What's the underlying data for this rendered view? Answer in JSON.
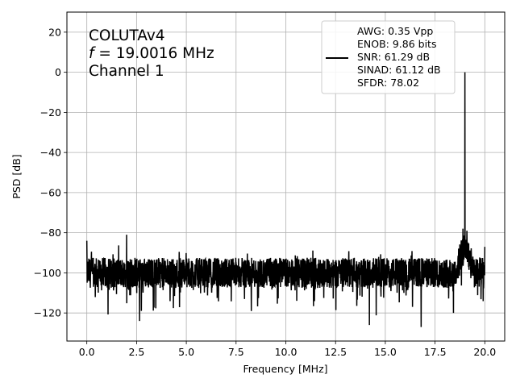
{
  "chart_data": {
    "type": "line",
    "xlabel": "Frequency [MHz]",
    "ylabel": "PSD [dB]",
    "xlim": [
      -1.0,
      21.0
    ],
    "ylim": [
      -134,
      30
    ],
    "xticks": [
      0.0,
      2.5,
      5.0,
      7.5,
      10.0,
      12.5,
      15.0,
      17.5,
      20.0
    ],
    "xtick_labels": [
      "0.0",
      "2.5",
      "5.0",
      "7.5",
      "10.0",
      "12.5",
      "15.0",
      "17.5",
      "20.0"
    ],
    "yticks": [
      20,
      0,
      -20,
      -40,
      -60,
      -80,
      -100,
      -120
    ],
    "ytick_labels": [
      "20",
      "0",
      "−20",
      "−40",
      "−60",
      "−80",
      "−100",
      "−120"
    ],
    "grid": true,
    "line_color": "#000000",
    "annotation": {
      "line1": "COLUTAv4",
      "line2_var": "f",
      "line2_rest": " = 19.0016 MHz",
      "line3": "Channel 1"
    },
    "legend": {
      "position": "top-right",
      "lines": [
        "AWG: 0.35 Vpp",
        "ENOB: 9.86 bits",
        "SNR: 61.29 dB",
        "SINAD: 61.12 dB",
        "SFDR: 78.02"
      ]
    },
    "series": [
      {
        "noise_floor_db": -100,
        "noise_min_db": -127,
        "noise_max_db": -84,
        "fundamental": {
          "x": 19.0016,
          "y": 0
        },
        "spurs": [
          {
            "x": 0.0,
            "y": -84
          },
          {
            "x": 2.0,
            "y": -81
          },
          {
            "x": 2.65,
            "y": -124
          },
          {
            "x": 14.2,
            "y": -126
          },
          {
            "x": 16.8,
            "y": -127
          },
          {
            "x": 18.9,
            "y": -78
          },
          {
            "x": 19.1,
            "y": -79
          },
          {
            "x": 20.0,
            "y": -87
          }
        ]
      }
    ]
  }
}
